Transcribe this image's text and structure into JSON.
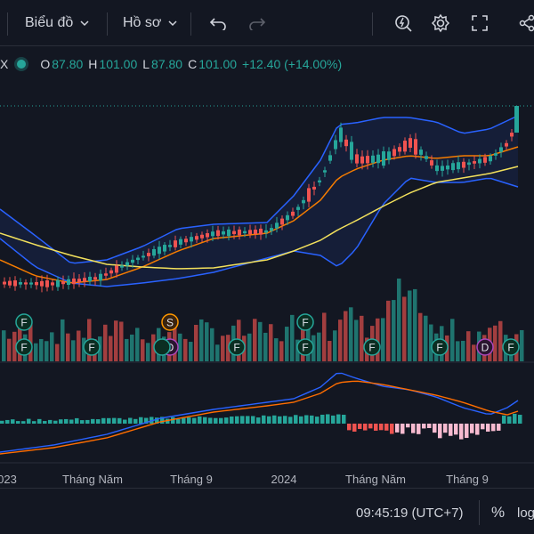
{
  "toolbar": {
    "chart_type_label": "Biểu đồ",
    "profile_label": "Hồ sơ"
  },
  "legend": {
    "symbol_cut": "X",
    "o_key": "O",
    "o_val": "87.80",
    "h_key": "H",
    "h_val": "101.00",
    "l_key": "L",
    "l_val": "87.80",
    "c_key": "C",
    "c_val": "101.00",
    "change": "+12.40 (+14.00%)"
  },
  "chart_data": {
    "type": "candlestick",
    "x_tick_labels": [
      "023",
      "Tháng Năm",
      "Tháng 9",
      "2024",
      "Tháng Năm",
      "Tháng 9"
    ],
    "last_close": 101.0,
    "last_open": 87.8,
    "last_high": 101.0,
    "last_low": 87.8,
    "markers": [
      "F",
      "F",
      "S",
      "F",
      "F",
      "D",
      "F",
      "F",
      "F",
      "F",
      "F",
      "D",
      "F"
    ],
    "overlays": [
      "bollinger-upper",
      "bollinger-lower",
      "ma-short",
      "ma-long"
    ],
    "sub_panes": [
      "volume",
      "macd"
    ]
  },
  "status": {
    "clock": "09:45:19 (UTC+7)",
    "percent": "%",
    "log": "log"
  },
  "colors": {
    "background": "#131722",
    "up": "#26a69a",
    "down": "#ef5350",
    "bb": "#2962ff",
    "ma_short": "#f57c00",
    "ma_long": "#f2e05c"
  }
}
